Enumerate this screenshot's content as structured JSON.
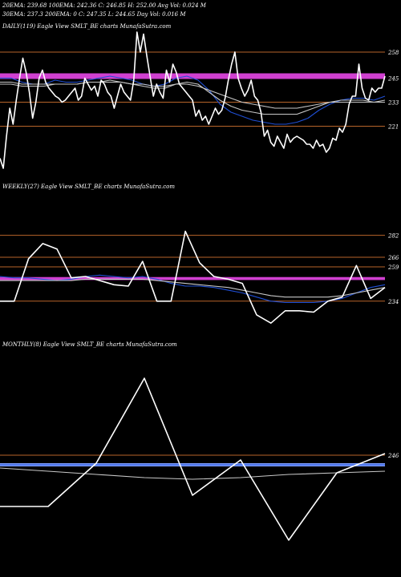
{
  "header": {
    "line1": "20EMA: 239.68    100EMA: 242.36    C: 246.85    H: 252.00    Avg Vol: 0.024  M",
    "line2": "30EMA: 237.3     200EMA: 0         C: 247.35    L: 244.65    Day Vol: 0.016  M"
  },
  "colors": {
    "background": "#000000",
    "price": "#ffffff",
    "ema_fast": "#1f4fd6",
    "ema_slow": "#c8c8c8",
    "level_line": "#b8642a",
    "highlight_band": "#d040d0",
    "monthly_band": "#7f9fff"
  },
  "chart_data": [
    {
      "type": "line",
      "title": "DAILY(119) Eagle  View  SMLT_BE charts MunafaSutra.com",
      "levels": [
        258,
        245,
        233,
        221
      ],
      "ylim": [
        200,
        268
      ],
      "series": [
        {
          "role": "price",
          "values": [
            205,
            200,
            216,
            230,
            222,
            234,
            245,
            255,
            248,
            238,
            225,
            233,
            245,
            249,
            243,
            240,
            238,
            236,
            235,
            233,
            234,
            236,
            238,
            240,
            234,
            236,
            245,
            242,
            239,
            241,
            236,
            244,
            242,
            238,
            236,
            230,
            236,
            242,
            238,
            236,
            234,
            244,
            268,
            258,
            267,
            256,
            246,
            236,
            242,
            238,
            235,
            249,
            243,
            252,
            248,
            242,
            240,
            238,
            236,
            234,
            226,
            229,
            224,
            226,
            222,
            226,
            230,
            227,
            229,
            235,
            244,
            252,
            258,
            245,
            240,
            236,
            239,
            244,
            236,
            234,
            228,
            216,
            219,
            213,
            211,
            216,
            213,
            210,
            217,
            213,
            215,
            216,
            215,
            214,
            212,
            212,
            210,
            214,
            211,
            212,
            208,
            210,
            215,
            214,
            220,
            218,
            222,
            232,
            236,
            236,
            252,
            240,
            235,
            234,
            240,
            238,
            240,
            240,
            246
          ]
        },
        {
          "role": "ema-20",
          "values": [
            245,
            245,
            243,
            242,
            242,
            244,
            243,
            243,
            244,
            245,
            246,
            245,
            244,
            242,
            241,
            242,
            245,
            246,
            244,
            239,
            232,
            228,
            226,
            224,
            223,
            222,
            222,
            223,
            225,
            229,
            232,
            234,
            235,
            235,
            234,
            236
          ]
        },
        {
          "role": "ema-30",
          "values": [
            242,
            242,
            241,
            241,
            241,
            242,
            242,
            242,
            243,
            243,
            244,
            243,
            242,
            241,
            240,
            240,
            242,
            243,
            242,
            238,
            234,
            231,
            229,
            228,
            227,
            227,
            227,
            227,
            229,
            231,
            233,
            234,
            234,
            234,
            233,
            233
          ]
        },
        {
          "role": "ema-100",
          "values": [
            243,
            243,
            242,
            242,
            242,
            242,
            242,
            242,
            243,
            243,
            243,
            243,
            242,
            242,
            241,
            241,
            242,
            242,
            241,
            239,
            237,
            235,
            233,
            232,
            231,
            230,
            230,
            230,
            231,
            232,
            233,
            233,
            233,
            233,
            233,
            234
          ]
        }
      ]
    },
    {
      "type": "line",
      "title": "WEEKLY(27) Eagle  View  SMLT_BE charts MunafaSutra.com",
      "levels": [
        282,
        266,
        259,
        234
      ],
      "ylim": [
        214,
        290
      ],
      "series": [
        {
          "role": "price",
          "values": [
            234,
            234,
            265,
            276,
            272,
            251,
            252,
            249,
            246,
            245,
            263,
            234,
            234,
            285,
            262,
            252,
            250,
            247,
            224,
            218,
            227,
            227,
            226,
            234,
            237,
            260,
            236,
            244
          ]
        },
        {
          "role": "ema-20",
          "values": [
            252,
            251,
            251,
            250,
            249,
            250,
            252,
            253,
            252,
            251,
            252,
            250,
            247,
            245,
            245,
            244,
            242,
            240,
            237,
            234,
            233,
            233,
            233,
            234,
            236,
            240,
            244,
            246
          ]
        },
        {
          "role": "ema-30",
          "values": [
            249,
            249,
            249,
            249,
            249,
            249,
            250,
            250,
            250,
            250,
            250,
            249,
            248,
            247,
            246,
            245,
            244,
            242,
            240,
            238,
            237,
            237,
            237,
            237,
            238,
            240,
            242,
            244
          ]
        }
      ]
    },
    {
      "type": "line",
      "title": "MONTHLY(8) Eagle  View  SMLT_BE charts MunafaSutra.com",
      "levels": [
        246
      ],
      "ylim": [
        180,
        310
      ],
      "series": [
        {
          "role": "price",
          "values": [
            214,
            214,
            241,
            294,
            221,
            243,
            193,
            235,
            247
          ]
        },
        {
          "role": "ema-fast",
          "values": [
            240,
            240,
            240,
            240,
            240,
            240,
            240,
            240,
            240
          ]
        },
        {
          "role": "ema-slow",
          "values": [
            238,
            236,
            234,
            232,
            231,
            232,
            234,
            235,
            236
          ]
        }
      ]
    }
  ]
}
